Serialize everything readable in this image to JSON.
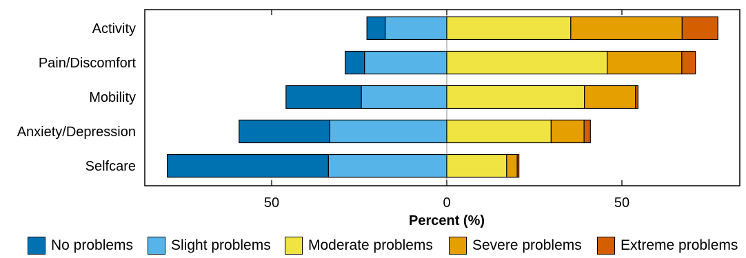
{
  "chart_data": {
    "type": "bar",
    "orientation": "horizontal",
    "stacked": "diverging",
    "xlabel": "Percent (%)",
    "ylabel": "",
    "xlim": [
      -85,
      85
    ],
    "xticks": [
      -50,
      0,
      50
    ],
    "xtick_labels": [
      "50",
      "0",
      "50"
    ],
    "categories": [
      "Activity",
      "Pain/Discomfort",
      "Mobility",
      "Anxiety/Depression",
      "Selfcare"
    ],
    "series": [
      {
        "name": "No problems",
        "color": "#0072B2",
        "side": "negative",
        "values": [
          5.2,
          5.5,
          21.5,
          25.9,
          46.0
        ]
      },
      {
        "name": "Slight problems",
        "color": "#56B4E9",
        "side": "negative",
        "values": [
          17.6,
          23.5,
          24.4,
          33.4,
          33.8
        ]
      },
      {
        "name": "Moderate problems",
        "color": "#F0E442",
        "side": "positive",
        "values": [
          35.4,
          45.8,
          39.3,
          29.8,
          17.1
        ]
      },
      {
        "name": "Severe problems",
        "color": "#E69F00",
        "side": "positive",
        "values": [
          31.8,
          21.3,
          14.6,
          9.4,
          3.0
        ]
      },
      {
        "name": "Extreme problems",
        "color": "#D55E00",
        "side": "positive",
        "values": [
          10.2,
          3.9,
          0.7,
          1.8,
          0.5
        ]
      }
    ],
    "grid": false,
    "legend": "bottom"
  }
}
